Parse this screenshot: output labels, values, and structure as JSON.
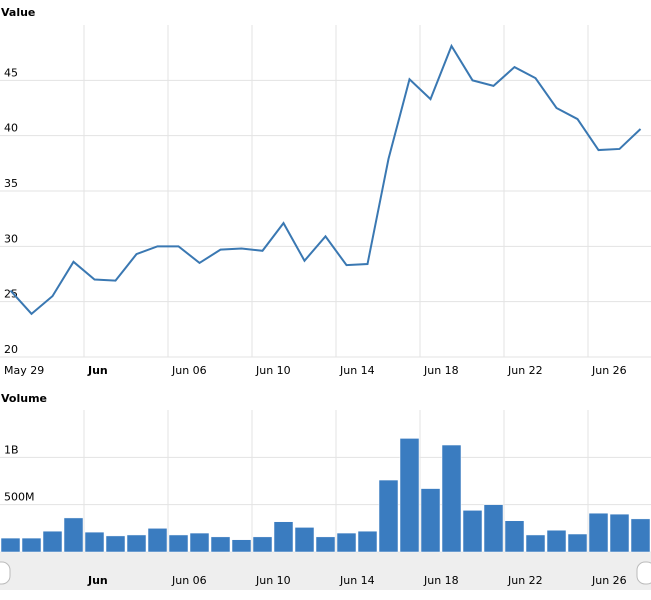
{
  "chart_data": [
    {
      "type": "line",
      "title": "Value",
      "color": "#3a78b2",
      "grid": true,
      "categories": [
        "May 29",
        null,
        null,
        null,
        "Jun",
        null,
        null,
        null,
        "Jun 06",
        null,
        null,
        null,
        "Jun 10",
        null,
        null,
        null,
        "Jun 14",
        null,
        null,
        null,
        "Jun 18",
        null,
        null,
        null,
        "Jun 22",
        null,
        null,
        null,
        "Jun 26",
        null,
        null
      ],
      "values": [
        26,
        23.9,
        25.5,
        28.6,
        27.0,
        26.9,
        29.3,
        30.0,
        30.0,
        28.5,
        29.7,
        29.8,
        29.6,
        32.1,
        28.7,
        30.9,
        28.3,
        28.4,
        37.9,
        45.1,
        43.3,
        48.1,
        45.0,
        44.5,
        46.2,
        45.2,
        42.5,
        41.5,
        38.7,
        38.8,
        40.6
      ],
      "ylim": [
        20,
        50
      ],
      "yticks": [
        20,
        25,
        30,
        35,
        40,
        45
      ]
    },
    {
      "type": "bar",
      "title": "Volume",
      "color": "#3a7cc0",
      "grid": true,
      "categories": [
        null,
        null,
        null,
        null,
        "Jun",
        null,
        null,
        null,
        "Jun 06",
        null,
        null,
        null,
        "Jun 10",
        null,
        null,
        null,
        "Jun 14",
        null,
        null,
        null,
        "Jun 18",
        null,
        null,
        null,
        "Jun 22",
        null,
        null,
        null,
        "Jun 26",
        null,
        null
      ],
      "values": [
        147000000,
        147000000,
        220000000,
        360000000,
        210000000,
        170000000,
        180000000,
        250000000,
        180000000,
        200000000,
        160000000,
        130000000,
        160000000,
        320000000,
        260000000,
        160000000,
        200000000,
        220000000,
        760000000,
        1200000000,
        670000000,
        1130000000,
        440000000,
        500000000,
        330000000,
        180000000,
        230000000,
        190000000,
        410000000,
        400000000,
        350000000
      ],
      "ylim": [
        0,
        1500000000
      ],
      "yticks": [
        0,
        {
          "value": 500000000,
          "label": "500M"
        },
        {
          "value": 1000000000,
          "label": "1B"
        }
      ]
    }
  ]
}
